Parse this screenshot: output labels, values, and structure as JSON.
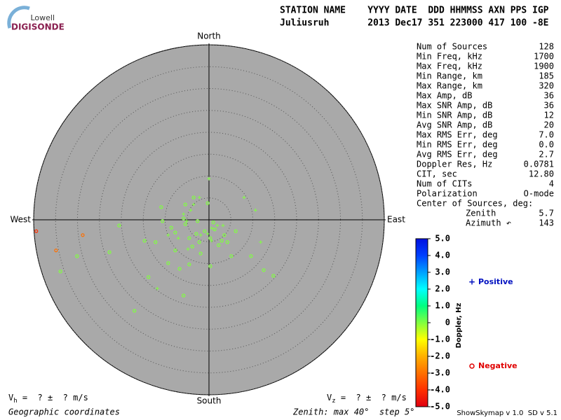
{
  "logo": {
    "top": "Lowell",
    "bottom": "DIGISONDE"
  },
  "header": {
    "labels": "STATION NAME    YYYY DATE  DDD HHMMSS AXN PPS IGP",
    "values": "Juliusruh       2013 Dec17 351 223000 417 100 -8E"
  },
  "stats": [
    [
      "Num of Sources",
      "128"
    ],
    [
      "Min Freq, kHz",
      "1700"
    ],
    [
      "Max Freq, kHz",
      "1900"
    ],
    [
      "Min Range, km",
      "185"
    ],
    [
      "Max Range, km",
      "320"
    ],
    [
      "Max Amp, dB",
      "36"
    ],
    [
      "Max SNR Amp, dB",
      "36"
    ],
    [
      "Min SNR Amp, dB",
      "12"
    ],
    [
      "Avg SNR Amp, dB",
      "20"
    ],
    [
      "Max RMS Err, deg",
      "7.0"
    ],
    [
      "Min RMS Err, deg",
      "0.0"
    ],
    [
      "Avg RMS Err, deg",
      "2.7"
    ],
    [
      "Doppler Res, Hz",
      "0.0781"
    ],
    [
      "CIT, sec",
      "12.80"
    ],
    [
      "Num of CITs",
      "4"
    ],
    [
      "Polarization",
      "O-mode"
    ]
  ],
  "center": {
    "title": "Center of Sources, deg:",
    "zenith_label": "Zenith",
    "zenith": "5.7",
    "azimuth_label": "Azimuth ↶",
    "azimuth": "143"
  },
  "velocity": {
    "vh": "V",
    "vh_sub": "h",
    "vh_text": " =  ? ±  ? m/s",
    "vz": "V",
    "vz_sub": "z",
    "vz_text": " =  ? ±  ? m/s"
  },
  "footer": {
    "coords": "Geographic coordinates",
    "zenith": "Zenith: max 40°  step 5°",
    "version": "ShowSkymap v 1.0  SD v 5.1"
  },
  "chart_data": {
    "type": "skymap",
    "directions": {
      "north": "North",
      "south": "South",
      "east": "East",
      "west": "West"
    },
    "rlim": [
      0,
      40
    ],
    "rticks": [
      5,
      10,
      15,
      20,
      25,
      30,
      35,
      40
    ],
    "colorbar": {
      "label": "Doppler, Hz",
      "clim": [
        -5,
        5
      ],
      "colors": [
        "#e00010",
        "#ff3000",
        "#ff7000",
        "#ffb000",
        "#ffff00",
        "#80ff40",
        "#00ff80",
        "#00ffff",
        "#00a0ff",
        "#0040ff",
        "#0010e0"
      ],
      "ticks": [
        {
          "value": 5,
          "label": "5.0"
        },
        {
          "value": 4,
          "label": "4.0"
        },
        {
          "value": 3,
          "label": "3.0"
        },
        {
          "value": 2,
          "label": "2.0"
        },
        {
          "value": 1,
          "label": "1.0"
        },
        0,
        {
          "value": -1,
          "label": "-1.0"
        },
        {
          "value": -2,
          "label": "-2.0"
        },
        {
          "value": -3,
          "label": "-3.0"
        },
        {
          "value": -4,
          "label": "-4.0"
        },
        {
          "value": -5,
          "label": "-5.0"
        }
      ]
    },
    "series": [
      {
        "name": "Positive",
        "marker": "plus",
        "color": "#0010c0",
        "x": [
          0,
          -4.2,
          -3.5,
          -5.8,
          -5.1,
          -1.9,
          -0.3,
          0.6,
          1.9,
          3.2,
          8.0,
          10.6,
          11.8,
          -11.8,
          -9.3,
          -7.0,
          -4.8,
          0.6,
          -2.2
        ],
        "y": [
          9.4,
          2.2,
          3.5,
          1.3,
          -0.3,
          -3.5,
          -3.2,
          -1.9,
          -1.3,
          -1.3,
          5.1,
          2.2,
          -5.1,
          -15.7,
          -3.5,
          -4.2,
          -6.7,
          -4.8,
          5.1
        ],
        "doppler": [
          0.3,
          0.3,
          0.3,
          0.3,
          0.3,
          0.3,
          0.3,
          0.3,
          0.3,
          0.3,
          0.3,
          0.3,
          0.3,
          0.3,
          0.3,
          0.3,
          0.3,
          0.3,
          0.3
        ]
      },
      {
        "name": "Negative",
        "marker": "circle",
        "color": "#e00000",
        "x": [
          -10.9,
          -10.6,
          -8.6,
          -7.7,
          -5.8,
          -5.4,
          -4.5,
          -3.8,
          -2.9,
          -2.2,
          -1.9,
          -1.0,
          0.3,
          1.3,
          2.2,
          2.9,
          3.5,
          4.2,
          5.1,
          0.3,
          -4.5,
          -6.7,
          -9.3,
          -13.8,
          -22.7,
          -30.1,
          -33.9,
          -17.0,
          -5.8,
          12.5,
          14.7,
          9.6,
          6.1,
          -20.5,
          -14.7,
          -12.2,
          -7.7,
          1.0,
          -2.6,
          -0.3,
          -3.5,
          -5.4,
          -34.9,
          -39.4,
          -28.8
        ],
        "y": [
          2.9,
          -0.3,
          -1.8,
          -2.9,
          0.3,
          -1.0,
          -4.2,
          -6.1,
          -3.2,
          -5.1,
          -7.7,
          -2.6,
          -4.2,
          -2.2,
          -5.8,
          -4.8,
          -3.5,
          -5.1,
          -8.3,
          -10.6,
          -10.2,
          -11.2,
          -9.9,
          -13.1,
          -7.4,
          -8.3,
          -11.8,
          -20.8,
          -17.3,
          -11.5,
          -12.8,
          -8.3,
          -2.6,
          -1.3,
          -4.8,
          -5.1,
          -7.0,
          -0.6,
          -0.3,
          3.8,
          5.1,
          3.5,
          -7.0,
          -2.6,
          -3.5
        ],
        "doppler": [
          0.3,
          0.3,
          0.3,
          0.3,
          0.3,
          0.3,
          0.3,
          0.3,
          0.3,
          0.3,
          0.3,
          0.3,
          0.3,
          0.3,
          0.3,
          0.3,
          0.3,
          0.3,
          0.3,
          0.3,
          0.3,
          0.3,
          0.3,
          0.3,
          0.3,
          0.3,
          0.3,
          0.3,
          0.3,
          0.3,
          0.3,
          0.3,
          0.3,
          0.3,
          0.3,
          0.3,
          0.3,
          0.3,
          0.3,
          0.3,
          0.3,
          0.3,
          -3.5,
          -3.7,
          -3.3
        ]
      }
    ]
  }
}
